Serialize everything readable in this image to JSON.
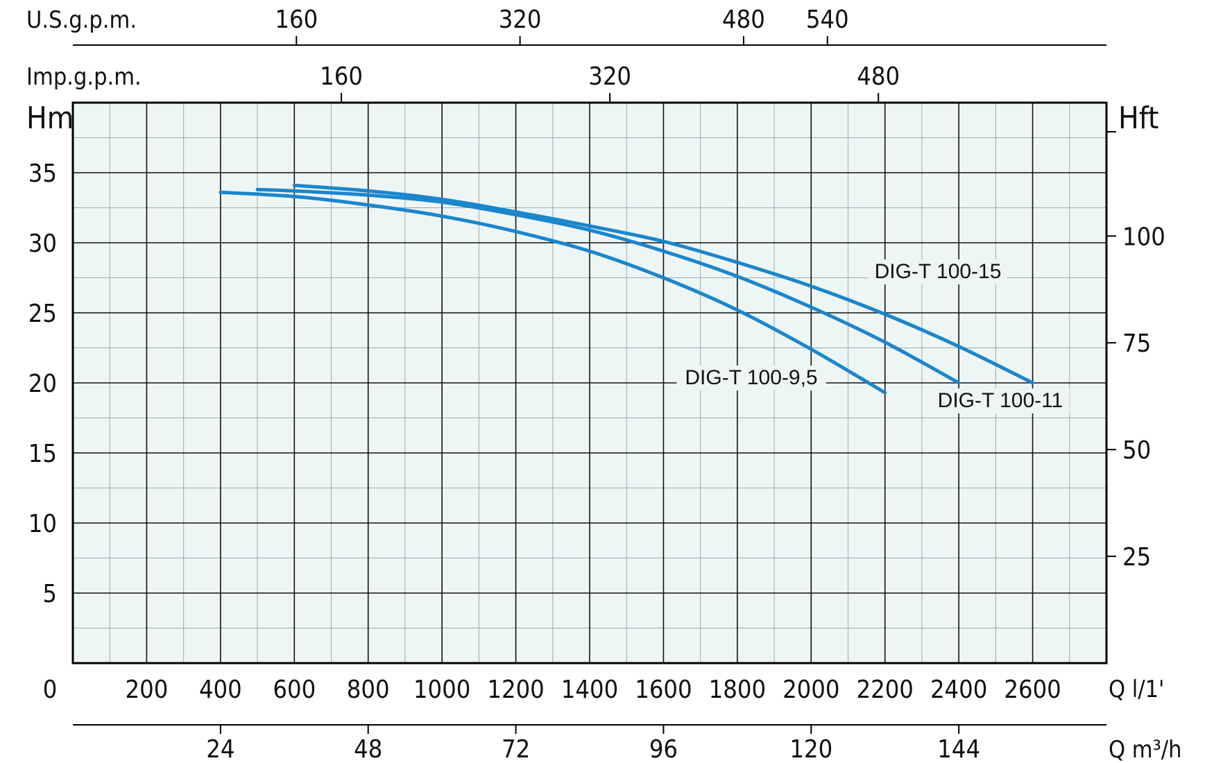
{
  "chart_data": {
    "type": "line",
    "title": "",
    "xlabel": "Q l/1'",
    "ylabel": "Hm",
    "xlim": [
      0,
      2800
    ],
    "ylim": [
      0,
      40
    ],
    "x_ticks": [
      0,
      200,
      400,
      600,
      800,
      1000,
      1200,
      1400,
      1600,
      1800,
      2000,
      2200,
      2400,
      2600
    ],
    "y_ticks": [
      0,
      5,
      10,
      15,
      20,
      25,
      30,
      35
    ],
    "grid": true,
    "y_unit": "Hm",
    "x_unit": "Q l/1'",
    "secondary_axes": {
      "us_gpm": {
        "label": "U.S.g.p.m.",
        "ticks": [
          160,
          320,
          480,
          540
        ]
      },
      "imp_gpm": {
        "label": "Imp.g.p.m.",
        "ticks": [
          160,
          320,
          480
        ]
      },
      "hft": {
        "label": "Hft",
        "ticks": [
          100,
          75,
          50,
          25
        ]
      },
      "m3h": {
        "label": "Q m³/h",
        "ticks": [
          24,
          48,
          72,
          96,
          120,
          144
        ]
      }
    },
    "series": [
      {
        "name": "DIG-T 100-9,5",
        "color": "#1a86cc",
        "x": [
          400,
          600,
          800,
          1000,
          1200,
          1400,
          1600,
          1800,
          2000,
          2200
        ],
        "y": [
          33.6,
          33.3,
          32.7,
          31.9,
          30.8,
          29.4,
          27.5,
          25.2,
          22.4,
          19.3
        ]
      },
      {
        "name": "DIG-T 100-11",
        "color": "#1a86cc",
        "x": [
          500,
          600,
          800,
          1000,
          1200,
          1400,
          1600,
          1800,
          2000,
          2200,
          2400
        ],
        "y": [
          33.8,
          33.7,
          33.4,
          32.9,
          32.0,
          30.9,
          29.4,
          27.6,
          25.4,
          22.9,
          20.0
        ]
      },
      {
        "name": "DIG-T 100-15",
        "color": "#1a86cc",
        "x": [
          600,
          800,
          1000,
          1200,
          1400,
          1600,
          1800,
          2000,
          2200,
          2400,
          2600
        ],
        "y": [
          34.1,
          33.7,
          33.1,
          32.2,
          31.2,
          30.1,
          28.6,
          26.9,
          24.9,
          22.6,
          20.0
        ]
      }
    ]
  }
}
